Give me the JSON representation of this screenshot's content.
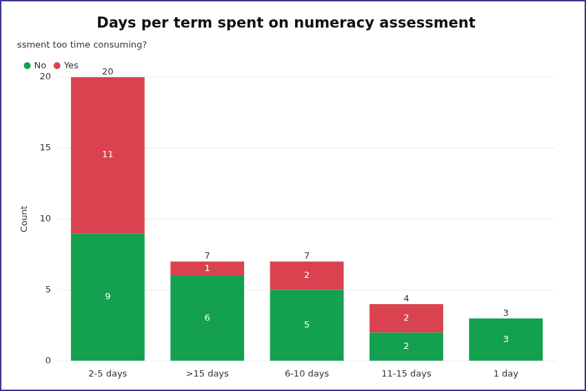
{
  "chart_data": {
    "type": "bar",
    "title": "Days per term spent on numeracy assessment",
    "y_label": "Count",
    "legend_title": "Numeracy assessment too time consuming?",
    "categories": [
      "2-5 days",
      ">15 days",
      "6-10 days",
      "11-15 days",
      "1 day"
    ],
    "series": [
      {
        "name": "No",
        "color": "#13a04f",
        "values": [
          9,
          6,
          5,
          2,
          3
        ]
      },
      {
        "name": "Yes",
        "color": "#d9434f",
        "values": [
          11,
          1,
          2,
          2,
          null
        ]
      }
    ],
    "totals": [
      20,
      7,
      7,
      4,
      3
    ],
    "ylim": [
      0,
      20
    ],
    "yticks": [
      0,
      5,
      10,
      15,
      20
    ],
    "grid": true,
    "stacked": true,
    "data_labels": true,
    "legend": "top-left"
  }
}
